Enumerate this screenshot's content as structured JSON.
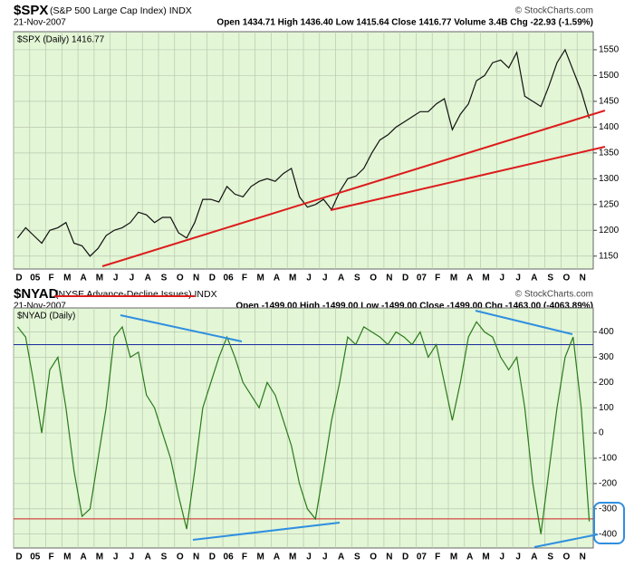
{
  "chart_data": [
    {
      "type": "line",
      "title": "$SPX",
      "description": "(S&P 500 Large Cap Index) INDX",
      "date": "21-Nov-2007",
      "quote": "Open 1434.71  High 1436.40  Low 1415.64  Close 1416.77  Volume 3.4B  Chg -22.93 (-1.59%)",
      "watermark": "© StockCharts.com",
      "legend": "$SPX (Daily) 1416.77",
      "categories": [
        "D",
        null,
        "05",
        null,
        "F",
        null,
        "M",
        null,
        "A",
        null,
        "M",
        null,
        "J",
        null,
        "J",
        null,
        "A",
        null,
        "S",
        null,
        "O",
        null,
        "N",
        null,
        "D",
        null,
        "06",
        null,
        "F",
        null,
        "M",
        null,
        "A",
        null,
        "M",
        null,
        "J",
        null,
        "J",
        null,
        "A",
        null,
        "S",
        null,
        "O",
        null,
        "N",
        null,
        "D",
        null,
        "07",
        null,
        "F",
        null,
        "M",
        null,
        "A",
        null,
        "M",
        null,
        "J",
        null,
        "J",
        null,
        "A",
        null,
        "S",
        null,
        "O",
        null,
        "N",
        null
      ],
      "values": [
        1185,
        1205,
        1190,
        1175,
        1200,
        1205,
        1215,
        1175,
        1170,
        1150,
        1165,
        1190,
        1200,
        1205,
        1215,
        1235,
        1230,
        1215,
        1225,
        1225,
        1195,
        1185,
        1215,
        1260,
        1260,
        1255,
        1285,
        1270,
        1265,
        1285,
        1295,
        1300,
        1295,
        1310,
        1320,
        1265,
        1245,
        1250,
        1260,
        1240,
        1275,
        1300,
        1305,
        1320,
        1350,
        1375,
        1385,
        1400,
        1410,
        1420,
        1430,
        1430,
        1445,
        1455,
        1395,
        1425,
        1445,
        1490,
        1500,
        1525,
        1530,
        1515,
        1545,
        1460,
        1450,
        1440,
        1480,
        1525,
        1550,
        1510,
        1470,
        1417
      ],
      "color": "#111111",
      "ylim": [
        1125,
        1585
      ],
      "yticks": [
        1150,
        1200,
        1250,
        1300,
        1350,
        1400,
        1450,
        1500,
        1550
      ],
      "grid": true
    },
    {
      "type": "line",
      "title": "$NYAD",
      "description": "(NYSE Advance-Decline Issues) INDX",
      "date": "21-Nov-2007",
      "quote": "Open -1499.00  High -1499.00  Low -1499.00  Close -1499.00  Chg -1463.00 (-4063.89%)",
      "watermark": "© StockCharts.com",
      "legend": "$NYAD (Daily)",
      "categories": [
        "D",
        null,
        "05",
        null,
        "F",
        null,
        "M",
        null,
        "A",
        null,
        "M",
        null,
        "J",
        null,
        "J",
        null,
        "A",
        null,
        "S",
        null,
        "O",
        null,
        "N",
        null,
        "D",
        null,
        "06",
        null,
        "F",
        null,
        "M",
        null,
        "A",
        null,
        "M",
        null,
        "J",
        null,
        "J",
        null,
        "A",
        null,
        "S",
        null,
        "O",
        null,
        "N",
        null,
        "D",
        null,
        "07",
        null,
        "F",
        null,
        "M",
        null,
        "A",
        null,
        "M",
        null,
        "J",
        null,
        "J",
        null,
        "A",
        null,
        "S",
        null,
        "O",
        null,
        "N",
        null
      ],
      "values": [
        420,
        380,
        200,
        0,
        250,
        300,
        100,
        -150,
        -330,
        -300,
        -100,
        100,
        380,
        420,
        300,
        320,
        150,
        100,
        0,
        -100,
        -250,
        -380,
        -150,
        100,
        200,
        300,
        380,
        300,
        200,
        150,
        100,
        200,
        150,
        50,
        -50,
        -200,
        -300,
        -340,
        -150,
        50,
        200,
        380,
        350,
        420,
        400,
        380,
        350,
        400,
        380,
        350,
        400,
        300,
        350,
        200,
        50,
        200,
        380,
        440,
        400,
        380,
        300,
        250,
        300,
        100,
        -200,
        -400,
        -150,
        100,
        300,
        380,
        100,
        -350
      ],
      "color": "#2a7a1a",
      "ylim": [
        -455,
        495
      ],
      "yticks": [
        -400,
        -300,
        -200,
        -100,
        0,
        100,
        200,
        300,
        400
      ],
      "hlines": [
        {
          "value": 350,
          "color": "#1a2aa0"
        },
        {
          "value": -340,
          "color": "#cc2020"
        }
      ],
      "grid": true
    }
  ]
}
